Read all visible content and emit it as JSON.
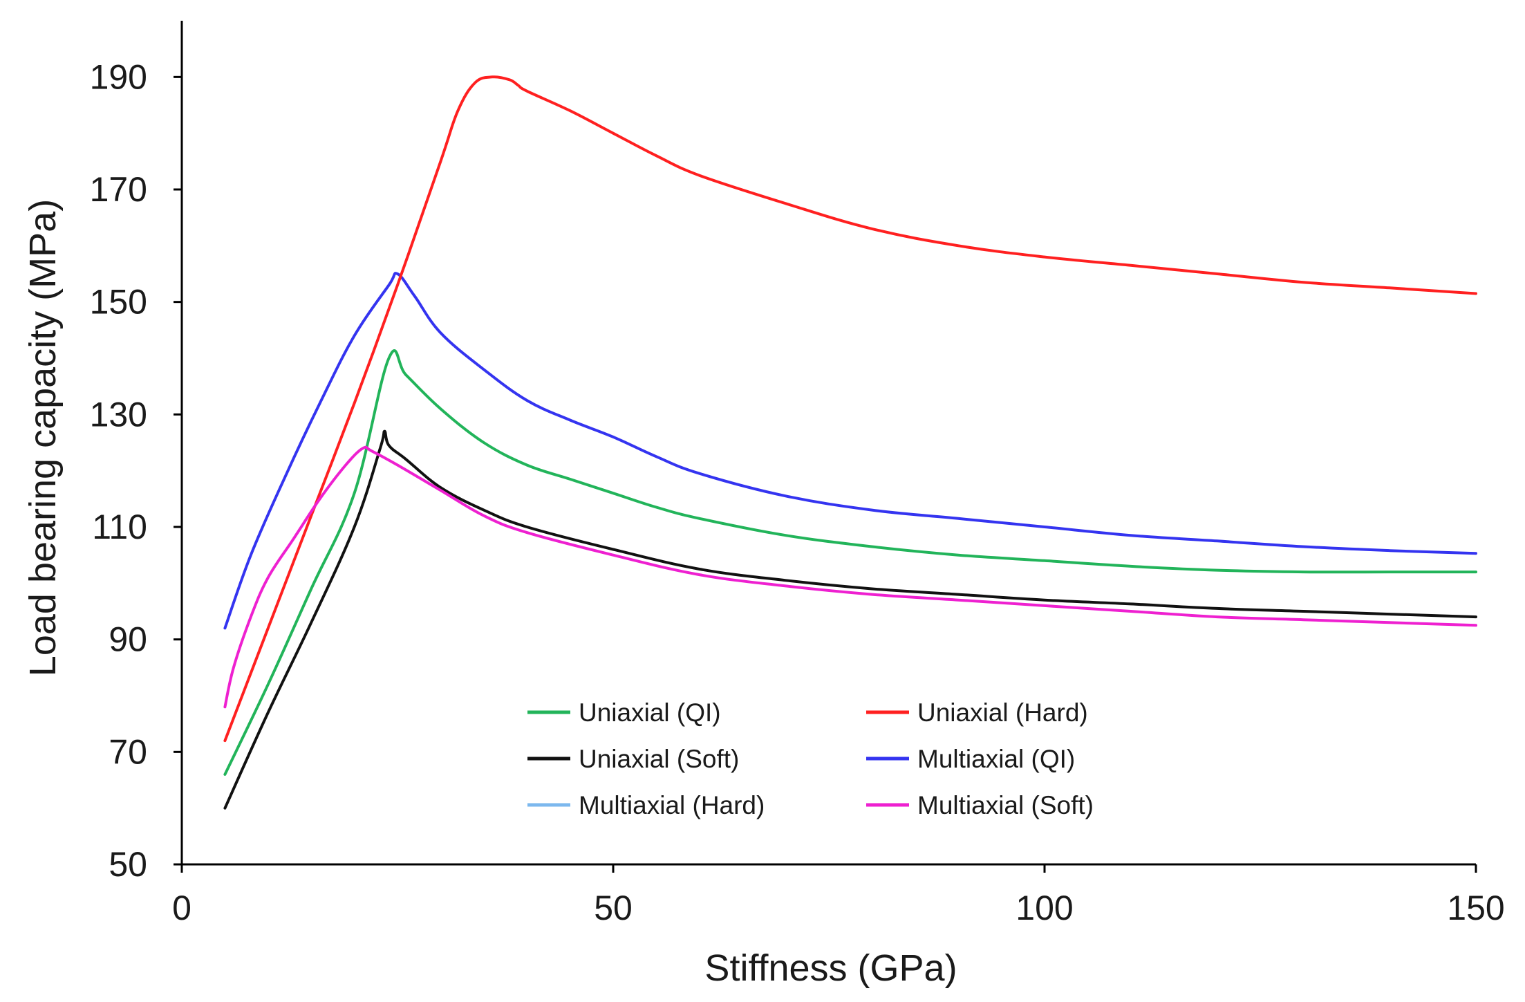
{
  "chart_data": {
    "type": "line",
    "title": "",
    "xlabel": "Stiffness (GPa)",
    "ylabel": "Load bearing capacity (MPa)",
    "xlim": [
      0,
      150
    ],
    "ylim": [
      50,
      200
    ],
    "xticks": [
      0,
      50,
      100,
      150
    ],
    "yticks": [
      50,
      70,
      90,
      110,
      130,
      150,
      170,
      190
    ],
    "grid": false,
    "legend_position": "bottom-center",
    "series": [
      {
        "name": "Uniaxial (QI)",
        "color": "#22b45a",
        "x": [
          5,
          10,
          15,
          20,
          24,
          26,
          30,
          35,
          40,
          45,
          50,
          55,
          60,
          70,
          80,
          90,
          100,
          110,
          120,
          130,
          140,
          150
        ],
        "y": [
          66,
          82,
          99,
          116,
          140,
          137,
          131,
          125,
          121,
          118.5,
          116,
          113.5,
          111.5,
          108.5,
          106.5,
          105,
          104,
          103,
          102.3,
          102,
          102,
          102
        ]
      },
      {
        "name": "Uniaxial (Hard)",
        "color": "#ff2020",
        "x": [
          5,
          10,
          15,
          20,
          25,
          30,
          32,
          34,
          36,
          38,
          39,
          40,
          45,
          50,
          55,
          60,
          70,
          80,
          90,
          100,
          110,
          120,
          130,
          140,
          150
        ],
        "y": [
          72,
          92,
          112,
          132,
          153,
          175,
          184,
          189,
          190,
          189.5,
          188.5,
          187.5,
          184,
          180,
          176,
          172.5,
          167.5,
          163,
          160,
          158,
          156.5,
          155,
          153.5,
          152.5,
          151.5
        ]
      },
      {
        "name": "Uniaxial (Soft)",
        "color": "#111111",
        "x": [
          5,
          10,
          15,
          20,
          23,
          23.5,
          24,
          26,
          30,
          35,
          40,
          50,
          60,
          70,
          80,
          90,
          100,
          110,
          120,
          130,
          140,
          150
        ],
        "y": [
          60,
          77,
          93,
          110,
          124,
          127,
          124.5,
          122,
          117,
          113,
          110,
          106,
          102.5,
          100.5,
          99,
          98,
          97,
          96.3,
          95.5,
          95,
          94.5,
          94
        ]
      },
      {
        "name": "Multiaxial (QI)",
        "color": "#3434f0",
        "x": [
          5,
          8,
          12,
          16,
          20,
          24,
          25,
          27,
          30,
          35,
          40,
          45,
          50,
          55,
          60,
          70,
          80,
          90,
          100,
          110,
          120,
          130,
          140,
          150
        ],
        "y": [
          92,
          105,
          119,
          132,
          144,
          153,
          155,
          151,
          144.5,
          138,
          132.5,
          129,
          126,
          122.5,
          119.5,
          115.5,
          113,
          111.5,
          110,
          108.5,
          107.5,
          106.5,
          105.8,
          105.3
        ]
      },
      {
        "name": "Multiaxial (Hard)",
        "color": "#7cb8ee",
        "x": [],
        "y": []
      },
      {
        "name": "Multiaxial (Soft)",
        "color": "#ee20d0",
        "x": [
          5,
          6,
          8,
          10,
          13,
          16,
          19,
          21,
          22,
          25,
          30,
          35,
          40,
          50,
          60,
          70,
          80,
          90,
          100,
          110,
          120,
          130,
          140,
          150
        ],
        "y": [
          78,
          85,
          94,
          101,
          108,
          115,
          121,
          124,
          123.5,
          121,
          116.5,
          112,
          109,
          105,
          101.5,
          99.5,
          98,
          97,
          96,
          95,
          94,
          93.5,
          93,
          92.5
        ]
      }
    ],
    "legend_rows": [
      [
        "Uniaxial (QI)",
        "Uniaxial (Hard)"
      ],
      [
        "Uniaxial (Soft)",
        "Multiaxial (QI)"
      ],
      [
        "Multiaxial (Hard)",
        "Multiaxial (Soft)"
      ]
    ]
  }
}
